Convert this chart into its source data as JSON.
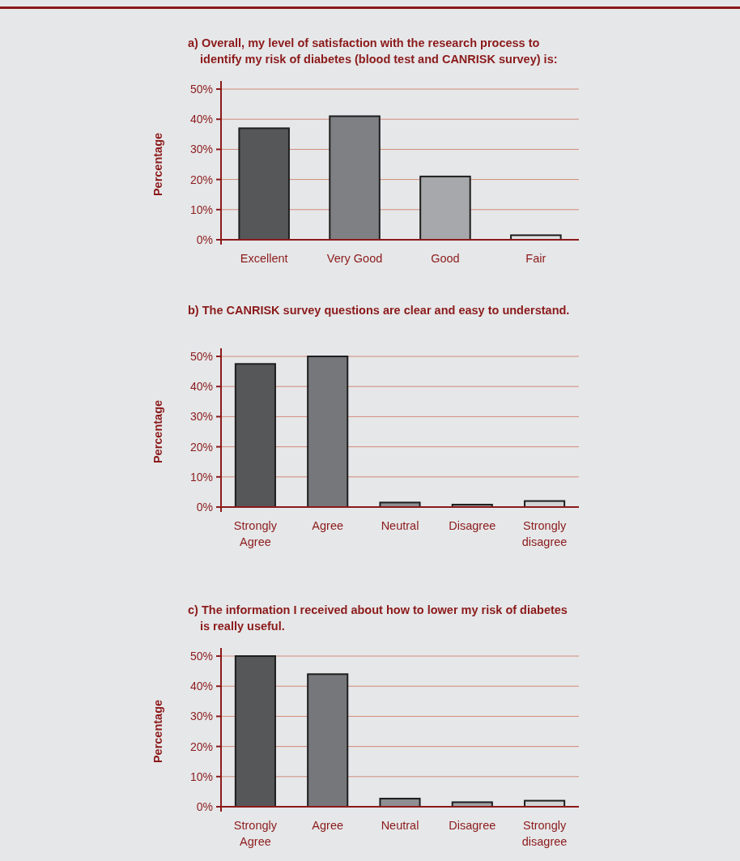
{
  "chart_data": [
    {
      "type": "bar",
      "title": "a) Overall, my level of satisfaction with the research process to identify my risk of diabetes (blood test and CANRISK survey) is:",
      "ylabel": "Percentage",
      "categories": [
        "Excellent",
        "Very Good",
        "Good",
        "Fair"
      ],
      "values": [
        37,
        41,
        21,
        1.5
      ],
      "colors": [
        "#565759",
        "#7f8084",
        "#a7a8ab",
        "#e0e0e1"
      ],
      "ylim": [
        0,
        50
      ],
      "yticks": [
        {
          "value": 0,
          "label": "0%"
        },
        {
          "value": 10,
          "label": "10%"
        },
        {
          "value": 20,
          "label": "20%"
        },
        {
          "value": 30,
          "label": "30%"
        },
        {
          "value": 40,
          "label": "40%"
        },
        {
          "value": 50,
          "label": "50%"
        }
      ],
      "grid": "y"
    },
    {
      "type": "bar",
      "title": "b) The CANRISK survey questions are clear and easy to understand.",
      "ylabel": "Percentage",
      "categories": [
        "Strongly Agree",
        "Agree",
        "Neutral",
        "Disagree",
        "Strongly disagree"
      ],
      "values": [
        47.5,
        50,
        1.5,
        0.8,
        2
      ],
      "colors": [
        "#565759",
        "#76777b",
        "#8e8f92",
        "#a0a1a4",
        "#d3d4d6"
      ],
      "ylim": [
        0,
        50
      ],
      "yticks": [
        {
          "value": 0,
          "label": "0%"
        },
        {
          "value": 10,
          "label": "10%"
        },
        {
          "value": 20,
          "label": "20%"
        },
        {
          "value": 30,
          "label": "30%"
        },
        {
          "value": 40,
          "label": "40%"
        },
        {
          "value": 50,
          "label": "50%"
        }
      ],
      "grid": "y"
    },
    {
      "type": "bar",
      "title": "c) The information I received about how to lower my risk of diabetes is really useful.",
      "ylabel": "Percentage",
      "categories": [
        "Strongly Agree",
        "Agree",
        "Neutral",
        "Disagree",
        "Strongly disagree"
      ],
      "values": [
        50,
        44,
        2.7,
        1.5,
        2
      ],
      "colors": [
        "#565759",
        "#76777b",
        "#8e8f92",
        "#a0a1a4",
        "#d3d4d6"
      ],
      "ylim": [
        0,
        50
      ],
      "yticks": [
        {
          "value": 0,
          "label": "0%"
        },
        {
          "value": 10,
          "label": "10%"
        },
        {
          "value": 20,
          "label": "20%"
        },
        {
          "value": 30,
          "label": "30%"
        },
        {
          "value": 40,
          "label": "40%"
        },
        {
          "value": 50,
          "label": "50%"
        }
      ],
      "grid": "y"
    }
  ]
}
